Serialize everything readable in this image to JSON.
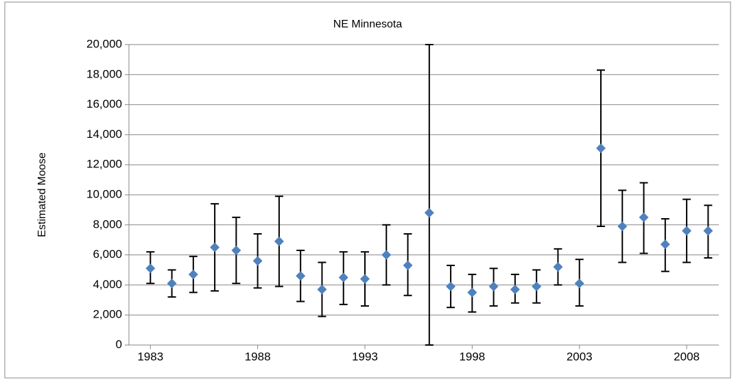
{
  "chart_data": {
    "type": "scatter",
    "title": "NE Minnesota",
    "y_label": "Estimated Moose",
    "x": [
      1983,
      1984,
      1985,
      1986,
      1987,
      1988,
      1989,
      1990,
      1991,
      1992,
      1993,
      1994,
      1995,
      1996,
      1997,
      1998,
      1999,
      2000,
      2001,
      2002,
      2003,
      2004,
      2005,
      2006,
      2007,
      2008,
      2009
    ],
    "values": [
      5100,
      4100,
      4700,
      6500,
      6300,
      5600,
      6900,
      4600,
      3700,
      4500,
      4400,
      6000,
      5300,
      8800,
      3900,
      3500,
      3900,
      3700,
      3900,
      5200,
      4100,
      13100,
      7900,
      8500,
      6700,
      7600,
      7600
    ],
    "lower": [
      4100,
      3200,
      3500,
      3600,
      4100,
      3800,
      3900,
      2900,
      1900,
      2700,
      2600,
      4000,
      3300,
      0,
      2500,
      2200,
      2600,
      2800,
      2800,
      4000,
      2600,
      7900,
      5500,
      6100,
      4900,
      5500,
      5800
    ],
    "upper": [
      6200,
      5000,
      5900,
      9400,
      8500,
      7400,
      9900,
      6300,
      5500,
      6200,
      6200,
      8000,
      7400,
      20000,
      5300,
      4700,
      5100,
      4700,
      5000,
      6400,
      5700,
      18300,
      10300,
      10800,
      8400,
      9700,
      9300
    ],
    "color": "#4f81bd",
    "error_color": "#000000",
    "xlim": [
      1982,
      2009.5
    ],
    "xticks": [
      1983,
      1988,
      1993,
      1998,
      2003,
      2008
    ],
    "ylim": [
      0,
      20000
    ],
    "yticks": [
      0,
      {
        "value": 2000,
        "label": "2,000"
      },
      {
        "value": 4000,
        "label": "4,000"
      },
      {
        "value": 6000,
        "label": "6,000"
      },
      {
        "value": 8000,
        "label": "8,000"
      },
      {
        "value": 10000,
        "label": "10,000"
      },
      {
        "value": 12000,
        "label": "12,000"
      },
      {
        "value": 14000,
        "label": "14,000"
      },
      {
        "value": 16000,
        "label": "16,000"
      },
      {
        "value": 18000,
        "label": "18,000"
      },
      {
        "value": 20000,
        "label": "20,000"
      }
    ],
    "grid": true
  }
}
